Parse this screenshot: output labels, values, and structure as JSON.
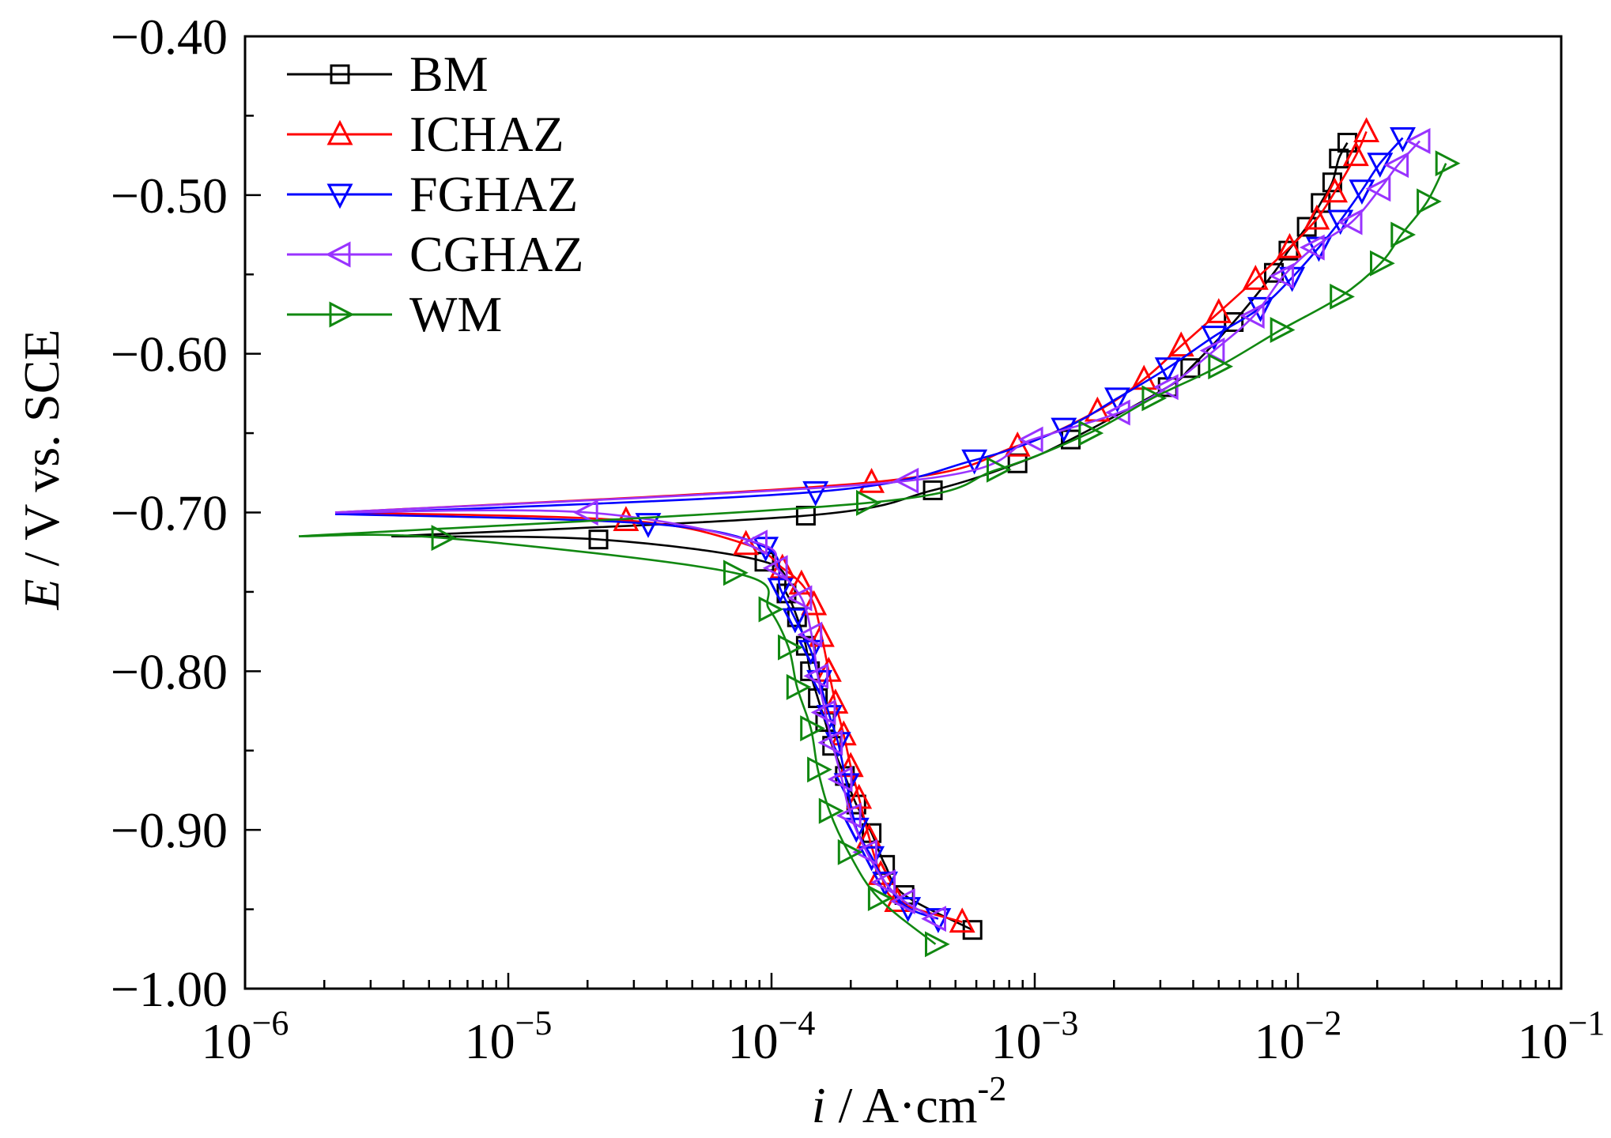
{
  "chart_data": {
    "type": "line",
    "xscale": "log",
    "xlim": [
      1e-06,
      0.1
    ],
    "ylim": [
      -1.0,
      -0.4
    ],
    "grid": false,
    "legend_position": "top-left",
    "xlabel": {
      "var": "i",
      "unit": " / A·cm",
      "exp": "-2"
    },
    "ylabel": {
      "var": "E",
      "unit": " / V vs. SCE"
    },
    "x_ticks": {
      "values": [
        1e-06,
        1e-05,
        0.0001,
        0.001,
        0.01,
        0.1
      ],
      "base": "10",
      "exponents": [
        "−6",
        "−5",
        "−4",
        "−3",
        "−2",
        "−1"
      ]
    },
    "y_ticks": {
      "values": [
        -0.4,
        -0.5,
        -0.6,
        -0.7,
        -0.8,
        -0.9,
        -1.0
      ],
      "labels": [
        "−0.40",
        "−0.50",
        "−0.60",
        "−0.70",
        "−0.80",
        "−0.90",
        "−1.00"
      ]
    },
    "series": [
      {
        "name": "BM",
        "color": "#000000",
        "marker": "square",
        "x": [
          0.00058,
          0.00032,
          0.00027,
          0.00024,
          0.00021,
          0.00019,
          0.00017,
          0.00016,
          0.00015,
          0.00014,
          0.000135,
          0.000125,
          0.000114,
          9.4e-05,
          2.2e-05,
          3.6e-06,
          0.000135,
          0.00041,
          0.00086,
          0.00137,
          0.0032,
          0.0039,
          0.0057,
          0.0081,
          0.0092,
          0.0108,
          0.0122,
          0.0135,
          0.0143,
          0.0154
        ],
        "y": [
          -0.963,
          -0.941,
          -0.922,
          -0.902,
          -0.884,
          -0.866,
          -0.847,
          -0.832,
          -0.817,
          -0.8,
          -0.784,
          -0.766,
          -0.751,
          -0.731,
          -0.717,
          -0.715,
          -0.702,
          -0.686,
          -0.669,
          -0.654,
          -0.621,
          -0.609,
          -0.58,
          -0.549,
          -0.535,
          -0.52,
          -0.505,
          -0.492,
          -0.477,
          -0.467
        ]
      },
      {
        "name": "ICHAZ",
        "color": "#ff0000",
        "marker": "triangle-up",
        "x": [
          0.00053,
          0.0003,
          0.00026,
          0.000235,
          0.000215,
          0.0002,
          0.000188,
          0.000175,
          0.000165,
          0.000155,
          0.000145,
          0.00013,
          0.00011,
          8e-05,
          2.8e-05,
          2.2e-06,
          0.00024,
          0.00086,
          0.00173,
          0.0026,
          0.0036,
          0.005,
          0.0069,
          0.0093,
          0.0118,
          0.0138,
          0.0166,
          0.0182
        ],
        "y": [
          -0.958,
          -0.945,
          -0.928,
          -0.905,
          -0.88,
          -0.86,
          -0.84,
          -0.82,
          -0.8,
          -0.778,
          -0.758,
          -0.745,
          -0.735,
          -0.72,
          -0.705,
          -0.7,
          -0.681,
          -0.658,
          -0.636,
          -0.616,
          -0.595,
          -0.574,
          -0.553,
          -0.533,
          -0.515,
          -0.498,
          -0.475,
          -0.46
        ]
      },
      {
        "name": "FGHAZ",
        "color": "#0000ff",
        "marker": "triangle-down",
        "x": [
          0.00043,
          0.00033,
          0.00027,
          0.00024,
          0.00021,
          0.000193,
          0.000179,
          0.000166,
          0.000152,
          0.000141,
          0.000123,
          0.000108,
          9.5e-05,
          3.4e-05,
          2.2e-06,
          0.000147,
          0.00059,
          0.00129,
          0.00206,
          0.0032,
          0.0048,
          0.0072,
          0.0095,
          0.012,
          0.0145,
          0.0175,
          0.0205,
          0.025
        ],
        "y": [
          -0.956,
          -0.949,
          -0.933,
          -0.917,
          -0.899,
          -0.871,
          -0.845,
          -0.828,
          -0.806,
          -0.787,
          -0.767,
          -0.748,
          -0.722,
          -0.707,
          -0.701,
          -0.687,
          -0.667,
          -0.647,
          -0.628,
          -0.609,
          -0.589,
          -0.571,
          -0.552,
          -0.533,
          -0.516,
          -0.497,
          -0.48,
          -0.464
        ]
      },
      {
        "name": "CGHAZ",
        "color": "#9933ff",
        "marker": "triangle-left",
        "x": [
          0.00042,
          0.00032,
          0.00027,
          0.00023,
          0.0002,
          0.000185,
          0.00017,
          0.00016,
          0.00015,
          0.000142,
          0.00013,
          0.000105,
          8.8e-05,
          2e-05,
          2.2e-06,
          0.00033,
          0.00098,
          0.0021,
          0.0032,
          0.0048,
          0.0068,
          0.0088,
          0.0115,
          0.016,
          0.0205,
          0.024,
          0.029
        ],
        "y": [
          -0.956,
          -0.945,
          -0.933,
          -0.914,
          -0.891,
          -0.868,
          -0.845,
          -0.826,
          -0.803,
          -0.777,
          -0.754,
          -0.735,
          -0.719,
          -0.7,
          -0.7,
          -0.68,
          -0.654,
          -0.637,
          -0.621,
          -0.598,
          -0.576,
          -0.551,
          -0.533,
          -0.517,
          -0.496,
          -0.481,
          -0.466
        ]
      },
      {
        "name": "WM",
        "color": "#118811",
        "marker": "triangle-right",
        "x": [
          0.00042,
          0.000255,
          0.000196,
          0.000166,
          0.00015,
          0.000141,
          0.000125,
          0.000116,
          9.8e-05,
          7.2e-05,
          5.6e-06,
          1.6e-06,
          0.00023,
          0.00072,
          0.00161,
          0.0028,
          0.005,
          0.0086,
          0.0145,
          0.0206,
          0.0247,
          0.031,
          0.0365
        ],
        "y": [
          -0.972,
          -0.943,
          -0.914,
          -0.888,
          -0.862,
          -0.836,
          -0.81,
          -0.785,
          -0.761,
          -0.738,
          -0.716,
          -0.715,
          -0.694,
          -0.673,
          -0.65,
          -0.628,
          -0.608,
          -0.585,
          -0.564,
          -0.543,
          -0.525,
          -0.504,
          -0.48
        ]
      }
    ]
  }
}
